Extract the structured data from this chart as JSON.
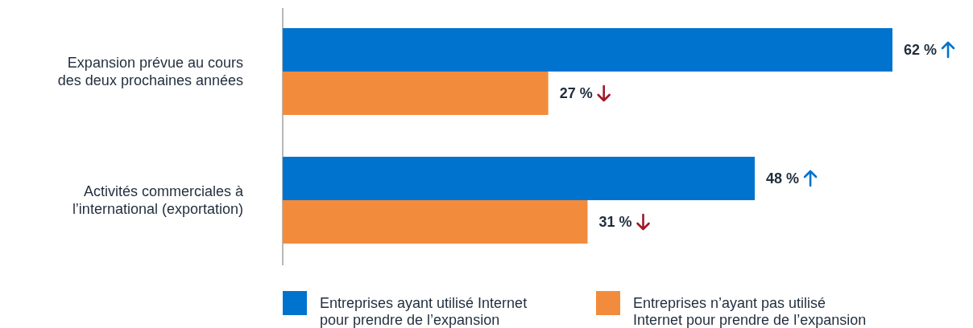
{
  "chart_data": {
    "type": "bar",
    "orientation": "horizontal",
    "categories": [
      "Expansion prévue au cours des deux prochaines années",
      "Activités commerciales à l’international (exportation)"
    ],
    "series": [
      {
        "name": "Entreprises ayant utilisé Internet pour prendre de l’expansion",
        "color": "#0073cf",
        "values": [
          62,
          48
        ],
        "value_labels": [
          "62 %",
          "48 %"
        ]
      },
      {
        "name": "Entreprises n’ayant pas utilisé Internet pour prendre de l’expansion",
        "color": "#f28c3c",
        "values": [
          27,
          31
        ],
        "value_labels": [
          "27 %",
          "31 %"
        ]
      }
    ],
    "relative": false,
    "legend": "bottom"
  }
}
